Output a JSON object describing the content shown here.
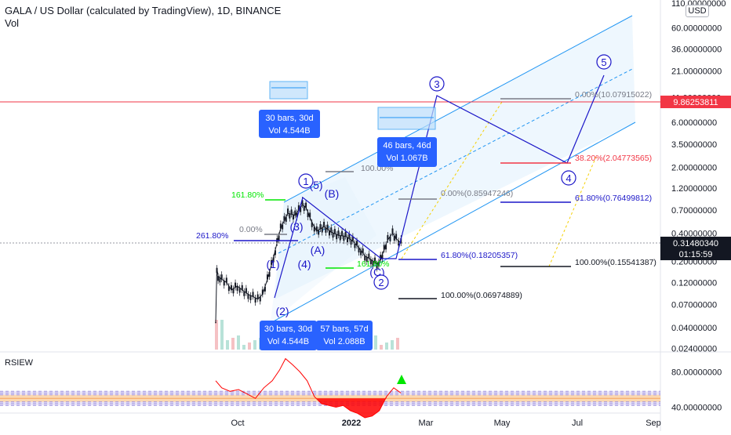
{
  "header": {
    "symbol_line": "GALA / US Dollar (calculated by TradingView), 1D, BINANCE",
    "volume_label": "Vol",
    "currency_badge": "USD"
  },
  "price_axis": {
    "ticks": [
      "110.00000000",
      "60.00000000",
      "36.00000000",
      "21.00000000",
      "11.00000000",
      "6.00000000",
      "3.50000000",
      "2.00000000",
      "1.20000000",
      "0.70000000",
      "0.40000000",
      "0.20000000",
      "0.12000000",
      "0.07000000",
      "0.04000000",
      "0.02400000"
    ],
    "red_line_price": "9.86253811",
    "last_price": "0.31480340",
    "countdown": "01:15:59"
  },
  "time_axis": {
    "labels": [
      "Oct",
      "2022",
      "Mar",
      "May",
      "Jul",
      "Sep"
    ]
  },
  "rsi_panel": {
    "title": "RSIEW",
    "ticks": [
      "80.00000000",
      "40.00000000"
    ]
  },
  "elliott_labels": [
    "(1)",
    "(2)",
    "(3)",
    "(4)",
    "(5)",
    "(A)",
    "(B)",
    "(C)",
    "1",
    "2",
    "3",
    "4",
    "5"
  ],
  "fib_labels": [
    "261.80%",
    "0.00%",
    "161.80%",
    "161.80%",
    "100.00%",
    "0.00%(0.85947246)",
    "61.80%(0.18205357)",
    "100.00%(0.06974889)",
    "0.00%(10.07915022)",
    "38.20%(2.04773565)",
    "61.80%(0.76499812)",
    "100.00%(0.15541387)"
  ],
  "boxes": [
    {
      "line1": "30 bars, 30d",
      "line2": "Vol 4.544B"
    },
    {
      "line1": "46 bars, 46d",
      "line2": "Vol 1.067B"
    },
    {
      "line1": "30 bars, 30d",
      "line2": "Vol 4.544B"
    },
    {
      "line1": "57 bars, 57d",
      "line2": "Vol 2.088B"
    }
  ],
  "colors": {
    "accent_blue": "#2962ff",
    "channel_blue": "#2196f3",
    "wave_navy": "#1c17c8",
    "red": "#f23645",
    "green": "#00e600",
    "candle": "#131722",
    "rsi_red": "#ff0000"
  },
  "chart_data": {
    "type": "line",
    "title": "GALA / US Dollar (calculated by TradingView), 1D, BINANCE",
    "xlabel": "",
    "ylabel": "",
    "y_scale": "log",
    "ylim": [
      0.02,
      110
    ],
    "x_range": [
      "2021-09-13",
      "2022-09-15"
    ],
    "series": [
      {
        "values": [
          [
            "2021-09-13",
            0.045
          ],
          [
            "2021-09-14",
            0.17
          ],
          [
            "2021-09-15",
            0.14
          ],
          [
            "2021-09-18",
            0.13
          ],
          [
            "2021-09-22",
            0.12
          ],
          [
            "2021-09-26",
            0.1
          ],
          [
            "2021-10-01",
            0.11
          ],
          [
            "2021-10-05",
            0.1
          ],
          [
            "2021-10-10",
            0.09
          ],
          [
            "2021-10-14",
            0.085
          ],
          [
            "2021-10-18",
            0.08
          ],
          [
            "2021-10-22",
            0.09
          ],
          [
            "2021-10-26",
            0.13
          ],
          [
            "2021-10-31",
            0.22
          ],
          [
            "2021-11-06",
            0.45
          ],
          [
            "2021-11-12",
            0.65
          ],
          [
            "2021-11-18",
            0.62
          ],
          [
            "2021-11-24",
            0.8
          ],
          [
            "2021-11-27",
            0.75
          ],
          [
            "2021-12-02",
            0.52
          ],
          [
            "2021-12-06",
            0.42
          ],
          [
            "2021-12-12",
            0.47
          ],
          [
            "2021-12-18",
            0.41
          ],
          [
            "2021-12-24",
            0.38
          ],
          [
            "2021-12-30",
            0.37
          ],
          [
            "2022-01-05",
            0.33
          ],
          [
            "2022-01-10",
            0.28
          ],
          [
            "2022-01-15",
            0.23
          ],
          [
            "2022-01-20",
            0.21
          ],
          [
            "2022-01-25",
            0.19
          ],
          [
            "2022-01-28",
            0.21
          ],
          [
            "2022-02-03",
            0.34
          ],
          [
            "2022-02-07",
            0.4
          ],
          [
            "2022-02-10",
            0.35
          ],
          [
            "2022-02-14",
            0.3148034
          ]
        ]
      }
    ],
    "annotations": {
      "horizontal_line": 9.86253811,
      "last_price": 0.3148034,
      "fib_levels": [
        0.85947246,
        0.18205357,
        0.06974889,
        10.07915022,
        2.04773565,
        0.76499812,
        0.15541387
      ]
    },
    "rsi": {
      "ylim": [
        20,
        100
      ],
      "values": [
        [
          "2021-09-13",
          70
        ],
        [
          "2021-09-18",
          62
        ],
        [
          "2021-09-25",
          58
        ],
        [
          "2021-10-02",
          60
        ],
        [
          "2021-10-09",
          55
        ],
        [
          "2021-10-16",
          50
        ],
        [
          "2021-10-23",
          62
        ],
        [
          "2021-10-30",
          70
        ],
        [
          "2021-11-05",
          82
        ],
        [
          "2021-11-10",
          95
        ],
        [
          "2021-11-16",
          88
        ],
        [
          "2021-11-22",
          80
        ],
        [
          "2021-11-28",
          70
        ],
        [
          "2021-12-04",
          52
        ],
        [
          "2021-12-10",
          44
        ],
        [
          "2021-12-16",
          42
        ],
        [
          "2021-12-22",
          40
        ],
        [
          "2021-12-28",
          42
        ],
        [
          "2022-01-03",
          36
        ],
        [
          "2022-01-09",
          33
        ],
        [
          "2022-01-15",
          28
        ],
        [
          "2022-01-21",
          30
        ],
        [
          "2022-01-27",
          36
        ],
        [
          "2022-02-02",
          52
        ],
        [
          "2022-02-08",
          62
        ],
        [
          "2022-02-14",
          56
        ]
      ]
    }
  }
}
